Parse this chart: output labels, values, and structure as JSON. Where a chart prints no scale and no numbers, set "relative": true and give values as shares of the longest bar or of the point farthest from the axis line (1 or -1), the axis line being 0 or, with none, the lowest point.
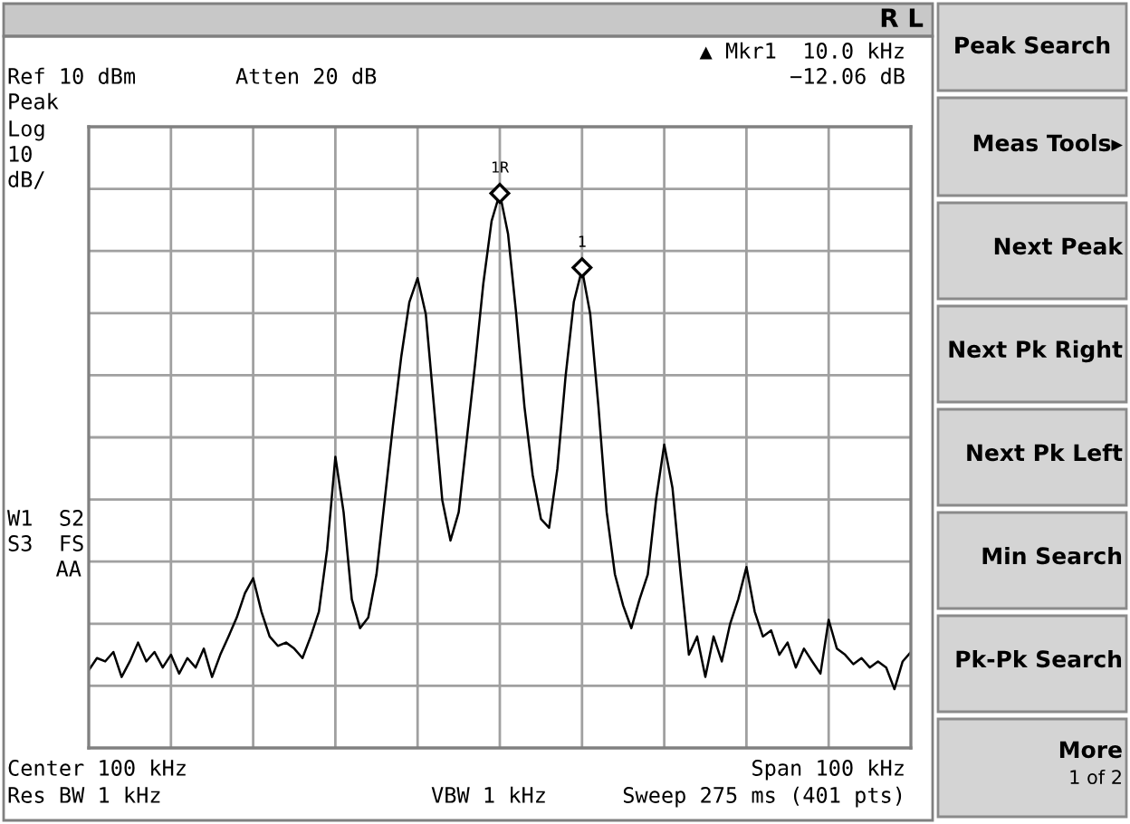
{
  "chart_data": {
    "type": "line",
    "relative": true,
    "categories": [
      null,
      null,
      null,
      null,
      null,
      null,
      null,
      null,
      null,
      null,
      null,
      null,
      null,
      null,
      null,
      null,
      null,
      null,
      null,
      null,
      null,
      null,
      null,
      null,
      null,
      null,
      null,
      null,
      null,
      null,
      null,
      null,
      null,
      null,
      null,
      null,
      null,
      null,
      null,
      null,
      null,
      null,
      null,
      null,
      null,
      null,
      null,
      null,
      null,
      null,
      null,
      null,
      null,
      null,
      null,
      null,
      null,
      null,
      null,
      null,
      null,
      null,
      null,
      null,
      null,
      null,
      null,
      null,
      null,
      null,
      null,
      null,
      null,
      null,
      null,
      null,
      null,
      null,
      null,
      null,
      null,
      null,
      null,
      null,
      null,
      null,
      null,
      null,
      null,
      null,
      null,
      null,
      null,
      null,
      null,
      null,
      null,
      null,
      null,
      null,
      null
    ],
    "series": [
      {
        "color": "#000000",
        "values": [
          0.14,
          0.162,
          0.156,
          0.173,
          0.128,
          0.156,
          0.19,
          0.156,
          0.173,
          0.145,
          0.168,
          0.134,
          0.162,
          0.145,
          0.179,
          0.128,
          0.168,
          0.201,
          0.235,
          0.279,
          0.306,
          0.246,
          0.201,
          0.184,
          0.19,
          0.179,
          0.162,
          0.201,
          0.246,
          0.358,
          0.525,
          0.425,
          0.268,
          0.216,
          0.235,
          0.313,
          0.447,
          0.581,
          0.704,
          0.804,
          0.847,
          0.782,
          0.615,
          0.447,
          0.374,
          0.425,
          0.559,
          0.693,
          0.838,
          0.95,
          1,
          0.927,
          0.782,
          0.615,
          0.492,
          0.413,
          0.397,
          0.503,
          0.67,
          0.804,
          0.863,
          0.782,
          0.615,
          0.425,
          0.313,
          0.257,
          0.216,
          0.268,
          0.313,
          0.447,
          0.547,
          0.469,
          0.313,
          0.168,
          0.201,
          0.128,
          0.201,
          0.156,
          0.223,
          0.268,
          0.326,
          0.246,
          0.201,
          0.212,
          0.168,
          0.19,
          0.145,
          0.179,
          0.156,
          0.134,
          0.231,
          0.179,
          0.168,
          0.151,
          0.162,
          0.145,
          0.156,
          0.145,
          0.106,
          0.156,
          0.173
        ]
      }
    ],
    "grid": true,
    "line_style": "solid",
    "marker": "none",
    "annotations": [
      {
        "text": "1R",
        "y": 1
      },
      {
        "text": "1",
        "y": 0.866
      },
      "R L",
      "▲ Mkr1  10.0 kHz",
      "−12.06 dB",
      "Ref 10 dBm",
      "Atten 20 dB",
      "Peak",
      "Log",
      "10",
      "dB/",
      "W1  S2",
      "S3  FS",
      "AA",
      "Center 100 kHz",
      "Span 100 kHz",
      "Res BW 1 kHz",
      "VBW 1 kHz",
      "Sweep 275 ms (401 pts)",
      "Peak Search",
      "Meas Tools▸",
      "Next Peak",
      "Next Pk Right",
      "Next Pk Left",
      "Min Search",
      "Pk-Pk Search",
      "More",
      "1 of 2"
    ]
  }
}
